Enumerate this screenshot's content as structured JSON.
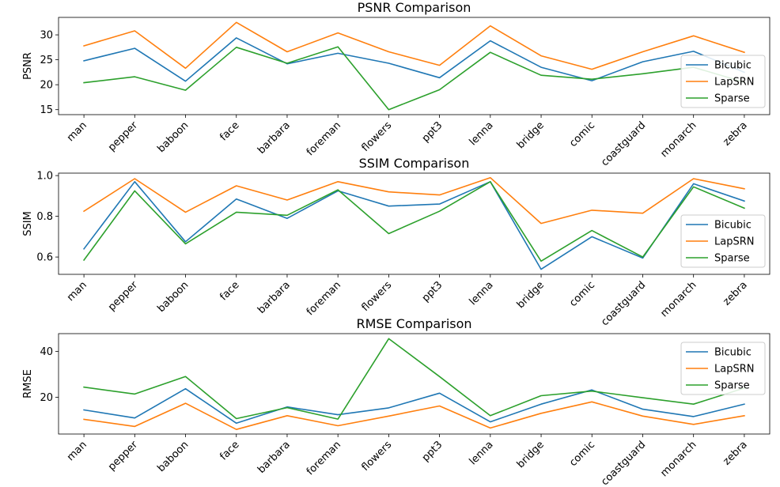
{
  "chart_data": [
    {
      "type": "line",
      "title": "PSNR Comparison",
      "xlabel": "",
      "ylabel": "PSNR",
      "ylim": [
        14,
        33.5
      ],
      "yticks": [
        15,
        20,
        25,
        30
      ],
      "grid": false,
      "legend": "right",
      "categories": [
        "man",
        "pepper",
        "baboon",
        "face",
        "barbara",
        "foreman",
        "flowers",
        "ppt3",
        "lenna",
        "bridge",
        "comic",
        "coastguard",
        "monarch",
        "zebra"
      ],
      "series": [
        {
          "name": "Bicubic",
          "color": "#1f77b4",
          "values": [
            24.8,
            27.3,
            20.7,
            29.4,
            24.2,
            26.3,
            24.3,
            21.4,
            28.8,
            23.5,
            20.8,
            24.6,
            26.7,
            22.5
          ]
        },
        {
          "name": "LapSRN",
          "color": "#ff7f0e",
          "values": [
            27.8,
            30.8,
            23.3,
            32.5,
            26.6,
            30.4,
            26.6,
            23.9,
            31.8,
            25.8,
            23.1,
            26.6,
            29.8,
            26.5
          ]
        },
        {
          "name": "Sparse",
          "color": "#2ca02c",
          "values": [
            20.4,
            21.6,
            18.9,
            27.5,
            24.3,
            27.6,
            15.0,
            19.0,
            26.5,
            21.9,
            21.1,
            22.2,
            23.5,
            20.5
          ]
        }
      ]
    },
    {
      "type": "line",
      "title": "SSIM Comparison",
      "xlabel": "",
      "ylabel": "SSIM",
      "ylim": [
        0.515,
        1.012
      ],
      "yticks": [
        0.6,
        0.8,
        1.0
      ],
      "ytick_labels": [
        "0.6",
        "0.8",
        "1.0"
      ],
      "grid": false,
      "legend": "right",
      "categories": [
        "man",
        "pepper",
        "baboon",
        "face",
        "barbara",
        "foreman",
        "flowers",
        "ppt3",
        "lenna",
        "bridge",
        "comic",
        "coastguard",
        "monarch",
        "zebra"
      ],
      "series": [
        {
          "name": "Bicubic",
          "color": "#1f77b4",
          "values": [
            0.64,
            0.97,
            0.675,
            0.885,
            0.79,
            0.925,
            0.85,
            0.86,
            0.97,
            0.54,
            0.7,
            0.595,
            0.96,
            0.875
          ]
        },
        {
          "name": "LapSRN",
          "color": "#ff7f0e",
          "values": [
            0.825,
            0.985,
            0.82,
            0.95,
            0.88,
            0.97,
            0.92,
            0.905,
            0.99,
            0.765,
            0.83,
            0.815,
            0.985,
            0.935
          ]
        },
        {
          "name": "Sparse",
          "color": "#2ca02c",
          "values": [
            0.585,
            0.925,
            0.665,
            0.82,
            0.805,
            0.93,
            0.715,
            0.825,
            0.97,
            0.58,
            0.73,
            0.6,
            0.945,
            0.84
          ]
        }
      ]
    },
    {
      "type": "line",
      "title": "RMSE Comparison",
      "xlabel": "",
      "ylabel": "RMSE",
      "ylim": [
        4.0,
        47.7
      ],
      "yticks": [
        20,
        40
      ],
      "grid": false,
      "legend": "top-right",
      "categories": [
        "man",
        "pepper",
        "baboon",
        "face",
        "barbara",
        "foreman",
        "flowers",
        "ppt3",
        "lenna",
        "bridge",
        "comic",
        "coastguard",
        "monarch",
        "zebra"
      ],
      "series": [
        {
          "name": "Bicubic",
          "color": "#1f77b4",
          "values": [
            14.5,
            11.0,
            23.7,
            8.7,
            15.8,
            12.4,
            15.4,
            21.8,
            9.3,
            17.0,
            23.2,
            14.8,
            11.6,
            17.0
          ]
        },
        {
          "name": "LapSRN",
          "color": "#ff7f0e",
          "values": [
            10.4,
            7.3,
            17.4,
            6.0,
            12.0,
            7.6,
            11.8,
            16.2,
            6.6,
            13.0,
            18.0,
            11.8,
            8.2,
            12.0
          ]
        },
        {
          "name": "Sparse",
          "color": "#2ca02c",
          "values": [
            24.4,
            21.4,
            29.0,
            10.7,
            15.5,
            10.5,
            45.5,
            29.0,
            12.0,
            20.7,
            22.7,
            19.8,
            17.0,
            24.0
          ]
        }
      ]
    }
  ]
}
